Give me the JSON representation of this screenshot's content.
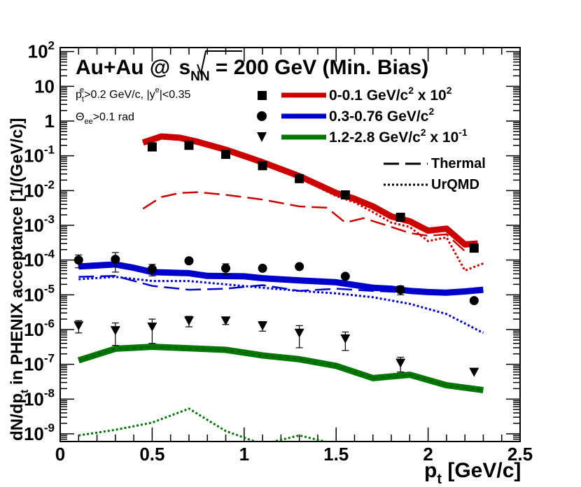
{
  "chart_data": {
    "type": "scatter",
    "title": "Au+Au @ √sNN = 200 GeV (Min. Bias)",
    "title_parts": {
      "prefix": "Au+Au @ ",
      "s": "s",
      "nn": "NN",
      "suffix": " = 200 GeV (Min. Bias)"
    },
    "xlabel": {
      "main": "p",
      "sub": "t",
      "unit": " [GeV/c]"
    },
    "ylabel": {
      "pre": "dN/dp",
      "sub": "t",
      "post": " in PHENIX acceptance [1/(GeV/c)]"
    },
    "xlim": [
      0,
      2.5
    ],
    "ylim": [
      6e-10,
      130
    ],
    "yscale": "log",
    "x_ticks": [
      {
        "value": 0,
        "label": "0"
      },
      {
        "value": 0.5,
        "label": "0.5"
      },
      {
        "value": 1,
        "label": "1"
      },
      {
        "value": 1.5,
        "label": "1.5"
      },
      {
        "value": 2,
        "label": "2"
      },
      {
        "value": 2.5,
        "label": "2.5"
      }
    ],
    "y_ticks": [
      {
        "exp": 2,
        "label": "10",
        "sup": "2"
      },
      {
        "exp": 1,
        "label": "10",
        "sup": ""
      },
      {
        "exp": 0,
        "label": "1",
        "sup": ""
      },
      {
        "exp": -1,
        "label": "10",
        "sup": "-1"
      },
      {
        "exp": -2,
        "label": "10",
        "sup": "-2"
      },
      {
        "exp": -3,
        "label": "10",
        "sup": "-3"
      },
      {
        "exp": -4,
        "label": "10",
        "sup": "-4"
      },
      {
        "exp": -5,
        "label": "10",
        "sup": "-5"
      },
      {
        "exp": -6,
        "label": "10",
        "sup": "-6"
      },
      {
        "exp": -7,
        "label": "10",
        "sup": "-7"
      },
      {
        "exp": -8,
        "label": "10",
        "sup": "-8"
      },
      {
        "exp": -9,
        "label": "10",
        "sup": "-9"
      }
    ],
    "cuts": {
      "line1": {
        "p": "p",
        "tsub": "t",
        "esup1": "e",
        "mid": ">0.2 GeV/c, |y",
        "esup2": "e",
        "end": "|<0.35"
      },
      "line2": {
        "theta": "Θ",
        "sub": "ee",
        "end": ">0.1 rad"
      }
    },
    "legend_items": [
      {
        "marker": "square",
        "color": "#cc0000",
        "main": "0-0.1 GeV/c",
        "sup1": "2",
        "mid": " x 10",
        "sup2": "2"
      },
      {
        "marker": "circle",
        "color": "#0000cc",
        "main": "0.3-0.76 GeV/c",
        "sup1": "2",
        "mid": "",
        "sup2": ""
      },
      {
        "marker": "triangle",
        "color": "#007700",
        "main": "1.2-2.8 GeV/c",
        "sup1": "2",
        "mid": " x 10",
        "sup2": "-1"
      }
    ],
    "legend_styles": [
      {
        "style": "dashed",
        "label": "Thermal"
      },
      {
        "style": "dotted",
        "label": "UrQMD"
      }
    ],
    "series": [
      {
        "name": "0-0.1 GeV/c2 x 10^2",
        "color": "#cc0000",
        "data": {
          "marker": "square",
          "points": [
            [
              0.5,
              0.18
            ],
            [
              0.7,
              0.2
            ],
            [
              0.9,
              0.11
            ],
            [
              1.1,
              0.052
            ],
            [
              1.3,
              0.022
            ],
            [
              1.55,
              0.0075
            ],
            [
              1.85,
              0.0017
            ],
            [
              2.25,
              0.00022
            ]
          ],
          "errors": [
            0,
            0,
            0,
            0,
            0,
            0,
            0,
            0
          ]
        },
        "total": [
          [
            0.45,
            0.24
          ],
          [
            0.55,
            0.36
          ],
          [
            0.65,
            0.33
          ],
          [
            0.75,
            0.25
          ],
          [
            0.9,
            0.15
          ],
          [
            1.1,
            0.065
          ],
          [
            1.3,
            0.026
          ],
          [
            1.5,
            0.0085
          ],
          [
            1.6,
            0.0058
          ],
          [
            1.7,
            0.0035
          ],
          [
            1.8,
            0.0018
          ],
          [
            1.9,
            0.0013
          ],
          [
            2.0,
            0.0007
          ],
          [
            2.1,
            0.0008
          ],
          [
            2.2,
            0.00028
          ],
          [
            2.27,
            0.0003
          ]
        ],
        "thermal": [
          [
            0.45,
            0.003
          ],
          [
            0.55,
            0.0065
          ],
          [
            0.65,
            0.0085
          ],
          [
            0.75,
            0.009
          ],
          [
            0.9,
            0.0075
          ],
          [
            1.1,
            0.0055
          ],
          [
            1.3,
            0.0035
          ],
          [
            1.45,
            0.0032
          ],
          [
            1.55,
            0.0012
          ],
          [
            1.65,
            0.0016
          ],
          [
            1.8,
            0.0009
          ],
          [
            1.9,
            0.0006
          ],
          [
            2.0,
            0.0005
          ],
          [
            2.1,
            0.00055
          ],
          [
            2.2,
            0.00018
          ],
          [
            2.27,
            0.00022
          ]
        ],
        "urqmd": [
          [
            0.45,
            0.24
          ],
          [
            0.55,
            0.33
          ],
          [
            0.65,
            0.3
          ],
          [
            0.75,
            0.24
          ],
          [
            0.9,
            0.14
          ],
          [
            1.1,
            0.06
          ],
          [
            1.3,
            0.023
          ],
          [
            1.5,
            0.007
          ],
          [
            1.6,
            0.0046
          ],
          [
            1.7,
            0.0024
          ],
          [
            1.8,
            0.0012
          ],
          [
            1.9,
            0.0009
          ],
          [
            2.0,
            0.00035
          ],
          [
            2.1,
            0.00045
          ],
          [
            2.2,
            5e-05
          ],
          [
            2.3,
            8e-05
          ]
        ]
      },
      {
        "name": "0.3-0.76 GeV/c2",
        "color": "#0000cc",
        "data": {
          "marker": "circle",
          "points": [
            [
              0.1,
              0.0001
            ],
            [
              0.3,
              0.000105
            ],
            [
              0.5,
              5.5e-05
            ],
            [
              0.7,
              9.5e-05
            ],
            [
              0.9,
              5.8e-05
            ],
            [
              1.1,
              5.8e-05
            ],
            [
              1.3,
              6.5e-05
            ],
            [
              1.55,
              3.4e-05
            ],
            [
              1.85,
              1.4e-05
            ],
            [
              2.25,
              6.8e-06
            ]
          ],
          "errors": [
            4e-05,
            6e-05,
            2e-05,
            0,
            2e-05,
            0,
            0,
            0,
            4e-06,
            0
          ]
        },
        "total": [
          [
            0.1,
            6.5e-05
          ],
          [
            0.3,
            7.5e-05
          ],
          [
            0.4,
            6e-05
          ],
          [
            0.5,
            4.5e-05
          ],
          [
            0.7,
            4.2e-05
          ],
          [
            0.8,
            3.5e-05
          ],
          [
            1.0,
            3.4e-05
          ],
          [
            1.1,
            3e-05
          ],
          [
            1.3,
            2.6e-05
          ],
          [
            1.5,
            2.3e-05
          ],
          [
            1.7,
            1.6e-05
          ],
          [
            1.8,
            1.5e-05
          ],
          [
            1.9,
            1.3e-05
          ],
          [
            2.0,
            1.2e-05
          ],
          [
            2.1,
            1.15e-05
          ],
          [
            2.2,
            1.25e-05
          ],
          [
            2.3,
            1.4e-05
          ]
        ],
        "thermal": [
          [
            0.1,
            3.3e-05
          ],
          [
            0.3,
            3.5e-05
          ],
          [
            0.5,
            1.8e-05
          ],
          [
            0.7,
            1.4e-05
          ],
          [
            0.9,
            1.5e-05
          ],
          [
            1.1,
            1.9e-05
          ],
          [
            1.3,
            1.3e-05
          ],
          [
            1.5,
            1.5e-05
          ],
          [
            1.7,
            1.3e-05
          ],
          [
            1.85,
            1.2e-05
          ],
          [
            2.0,
            1.05e-05
          ],
          [
            2.3,
            1.2e-05
          ]
        ],
        "urqmd": [
          [
            0.1,
            2.8e-05
          ],
          [
            0.3,
            3.3e-05
          ],
          [
            0.5,
            2.5e-05
          ],
          [
            0.7,
            2.5e-05
          ],
          [
            0.9,
            2e-05
          ],
          [
            1.1,
            1.6e-05
          ],
          [
            1.3,
            1.3e-05
          ],
          [
            1.5,
            1.1e-05
          ],
          [
            1.7,
            8.5e-06
          ],
          [
            1.9,
            5.5e-06
          ],
          [
            2.1,
            2.8e-06
          ],
          [
            2.3,
            8e-07
          ]
        ]
      },
      {
        "name": "1.2-2.8 GeV/c2 x 10^-1",
        "color": "#007700",
        "data": {
          "marker": "triangle",
          "points": [
            [
              0.1,
              1.3e-06
            ],
            [
              0.3,
              9.5e-07
            ],
            [
              0.5,
              1.2e-06
            ],
            [
              0.7,
              1.8e-06
            ],
            [
              0.9,
              1.8e-06
            ],
            [
              1.1,
              1.3e-06
            ],
            [
              1.3,
              8e-07
            ],
            [
              1.55,
              5.5e-07
            ],
            [
              1.85,
              1.1e-07
            ],
            [
              2.25,
              6e-08
            ]
          ],
          "errors": [
            5e-07,
            6e-07,
            8e-07,
            6e-07,
            4e-07,
            4e-07,
            5e-07,
            3e-07,
            5e-08,
            0
          ]
        },
        "total": [
          [
            0.1,
            1.3e-07
          ],
          [
            0.3,
            2.8e-07
          ],
          [
            0.5,
            3.2e-07
          ],
          [
            0.7,
            2.9e-07
          ],
          [
            0.9,
            2.6e-07
          ],
          [
            1.1,
            1.8e-07
          ],
          [
            1.3,
            1.4e-07
          ],
          [
            1.5,
            9e-08
          ],
          [
            1.7,
            4e-08
          ],
          [
            1.9,
            5e-08
          ],
          [
            2.1,
            2.5e-08
          ],
          [
            2.3,
            1.8e-08
          ]
        ],
        "urqmd": [
          [
            0.1,
            9e-10
          ],
          [
            0.3,
            1.3e-09
          ],
          [
            0.5,
            2.1e-09
          ],
          [
            0.7,
            5.3e-09
          ],
          [
            0.9,
            1.2e-09
          ],
          [
            1.1,
            5e-10
          ],
          [
            1.3,
            9e-10
          ],
          [
            1.5,
            5e-10
          ]
        ]
      }
    ]
  }
}
